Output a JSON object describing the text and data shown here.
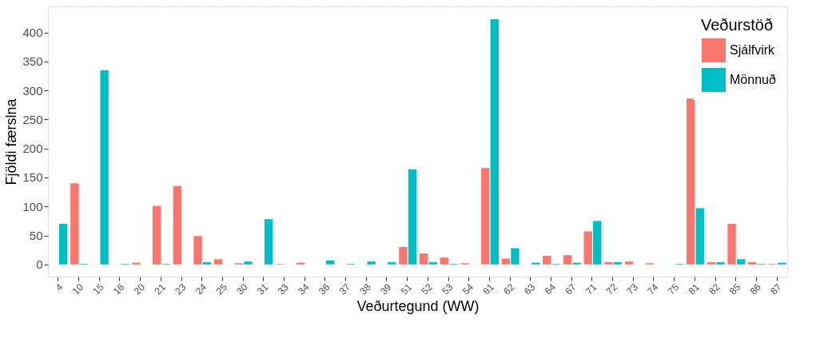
{
  "chart_data": {
    "type": "bar",
    "xlabel": "Veðurtegund (WW)",
    "ylabel": "Fjöldi færslna",
    "legend_title": "Veðurstöð",
    "categories": [
      "4",
      "10",
      "15",
      "16",
      "20",
      "21",
      "23",
      "24",
      "25",
      "30",
      "31",
      "33",
      "34",
      "36",
      "37",
      "38",
      "39",
      "51",
      "52",
      "53",
      "54",
      "61",
      "62",
      "63",
      "64",
      "67",
      "71",
      "72",
      "73",
      "74",
      "75",
      "81",
      "82",
      "85",
      "86",
      "87"
    ],
    "series": [
      {
        "name": "Sjálfvirk",
        "color": "#f8766d",
        "values": [
          null,
          140,
          null,
          null,
          3,
          101,
          135,
          49,
          9,
          2,
          null,
          1,
          3,
          null,
          null,
          null,
          null,
          30,
          19,
          12,
          2,
          166,
          10,
          null,
          15,
          16,
          57,
          4,
          5,
          2,
          null,
          286,
          4,
          70,
          4,
          1
        ]
      },
      {
        "name": "Mönnuð",
        "color": "#00bfc4",
        "values": [
          70,
          1,
          335,
          1,
          null,
          1,
          null,
          4,
          null,
          5,
          78,
          null,
          null,
          7,
          1,
          5,
          4,
          164,
          4,
          1,
          null,
          423,
          28,
          3,
          1,
          3,
          75,
          4,
          null,
          null,
          1,
          97,
          4,
          9,
          1,
          3
        ]
      }
    ],
    "ylim": [
      -21,
      445
    ],
    "yticks": [
      0,
      50,
      100,
      150,
      200,
      250,
      300,
      350,
      400
    ],
    "grid": true,
    "legend": "top right"
  }
}
